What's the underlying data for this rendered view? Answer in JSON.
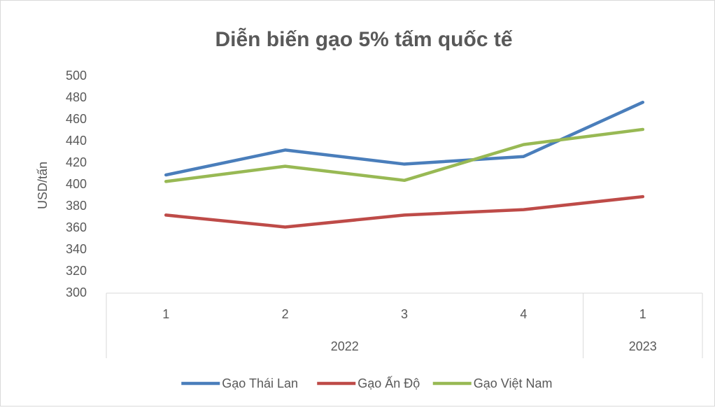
{
  "chart_data": {
    "type": "line",
    "title": "Diễn biến gạo 5% tấm quốc tế",
    "y_label": "USD/tấn",
    "categories": [
      "1",
      "2",
      "3",
      "4",
      "1"
    ],
    "category_groups": [
      {
        "label": "2022",
        "span": 4
      },
      {
        "label": "2023",
        "span": 1
      }
    ],
    "series": [
      {
        "name": "Gạo Thái Lan",
        "color": "#4a7ebb",
        "values": [
          409,
          432,
          419,
          426,
          476
        ]
      },
      {
        "name": "Gạo Ấn Độ",
        "color": "#be4b48",
        "values": [
          372,
          361,
          372,
          377,
          389
        ]
      },
      {
        "name": "Gạo Việt Nam",
        "color": "#98b954",
        "values": [
          403,
          417,
          404,
          437,
          451
        ]
      }
    ],
    "ylim": [
      300,
      500
    ],
    "yticks": [
      300,
      320,
      340,
      360,
      380,
      400,
      420,
      440,
      460,
      480,
      500
    ],
    "legend": "bottom"
  }
}
